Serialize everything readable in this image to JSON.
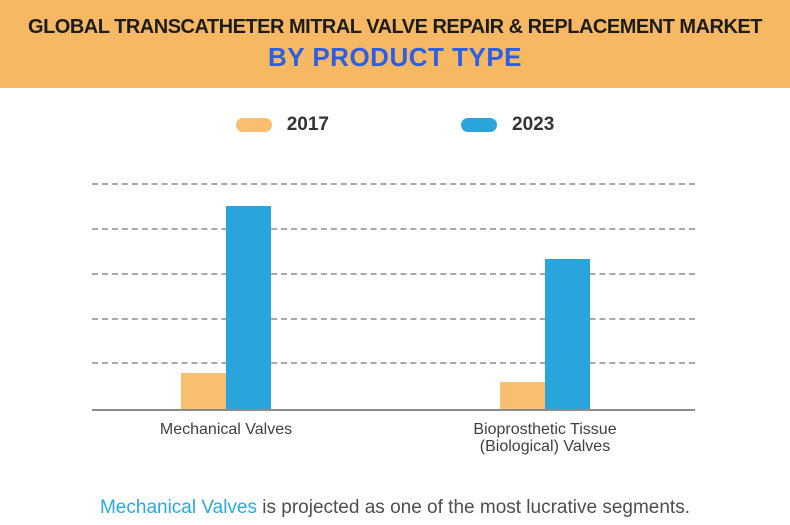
{
  "header": {
    "title": "GLOBAL TRANSCATHETER MITRAL VALVE REPAIR & REPLACEMENT MARKET",
    "subtitle": "BY PRODUCT TYPE",
    "background_color": "#F6B862",
    "title_color": "#1c1c1c",
    "subtitle_color": "#2C5FE4"
  },
  "chart_data": {
    "type": "bar",
    "title": "GLOBAL TRANSCATHETER MITRAL VALVE REPAIR & REPLACEMENT MARKET",
    "subtitle": "BY PRODUCT TYPE",
    "categories": [
      "Mechanical Valves",
      "Bioprosthetic Tissue\n(Biological) Valves"
    ],
    "series": [
      {
        "name": "2017",
        "color": "#F9BE6F",
        "values": [
          0.8,
          0.6
        ]
      },
      {
        "name": "2023",
        "color": "#2AA5DC",
        "values": [
          4.55,
          3.35
        ]
      }
    ],
    "xlabel": "",
    "ylabel": "",
    "ylim": [
      0,
      5.5
    ],
    "yticks": [
      1,
      2,
      3,
      4,
      5
    ],
    "yticks_labeled": false,
    "grid": "horizontal-dashed",
    "legend_position": "top"
  },
  "legend": {
    "items": [
      {
        "label": "2017",
        "color": "#F9BE6F"
      },
      {
        "label": "2023",
        "color": "#2AA5DC"
      }
    ]
  },
  "footer": {
    "highlight": "Mechanical Valves",
    "rest": " is projected as one of the most lucrative segments.",
    "highlight_color": "#29A9E0"
  }
}
